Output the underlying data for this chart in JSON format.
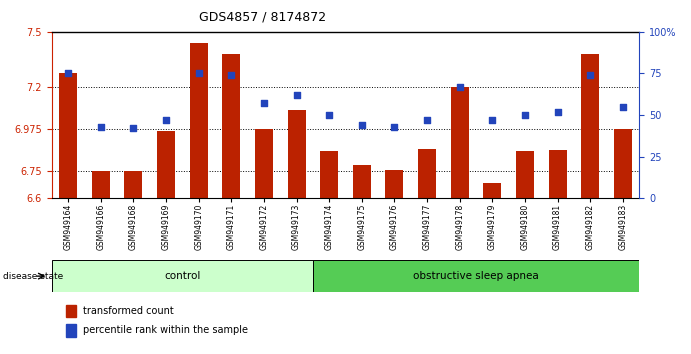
{
  "title": "GDS4857 / 8174872",
  "samples": [
    "GSM949164",
    "GSM949166",
    "GSM949168",
    "GSM949169",
    "GSM949170",
    "GSM949171",
    "GSM949172",
    "GSM949173",
    "GSM949174",
    "GSM949175",
    "GSM949176",
    "GSM949177",
    "GSM949178",
    "GSM949179",
    "GSM949180",
    "GSM949181",
    "GSM949182",
    "GSM949183"
  ],
  "bar_values": [
    7.28,
    6.75,
    6.75,
    6.965,
    7.44,
    7.38,
    6.975,
    7.08,
    6.855,
    6.78,
    6.755,
    6.865,
    7.2,
    6.68,
    6.855,
    6.86,
    7.38,
    6.975
  ],
  "percentile_values": [
    75,
    43,
    42,
    47,
    75,
    74,
    57,
    62,
    50,
    44,
    43,
    47,
    67,
    47,
    50,
    52,
    74,
    55
  ],
  "ylim_left": [
    6.6,
    7.5
  ],
  "ylim_right": [
    0,
    100
  ],
  "yticks_left": [
    6.6,
    6.75,
    6.975,
    7.2,
    7.5
  ],
  "yticks_right": [
    0,
    25,
    50,
    75,
    100
  ],
  "ytick_labels_left": [
    "6.6",
    "6.75",
    "6.975",
    "7.2",
    "7.5"
  ],
  "ytick_labels_right": [
    "0",
    "25",
    "50",
    "75",
    "100%"
  ],
  "bar_color": "#bb2200",
  "dot_color": "#2244bb",
  "background_color": "#ffffff",
  "grid_color": "#000000",
  "control_label": "control",
  "apnea_label": "obstructive sleep apnea",
  "disease_label": "disease state",
  "legend_bar": "transformed count",
  "legend_dot": "percentile rank within the sample",
  "control_count": 8,
  "control_bg": "#ccffcc",
  "apnea_bg": "#55cc55",
  "ylabel_left_color": "#cc2200",
  "ylabel_right_color": "#2244bb",
  "title_color": "#000000",
  "grid_dotted_vals": [
    6.75,
    6.975,
    7.2
  ]
}
